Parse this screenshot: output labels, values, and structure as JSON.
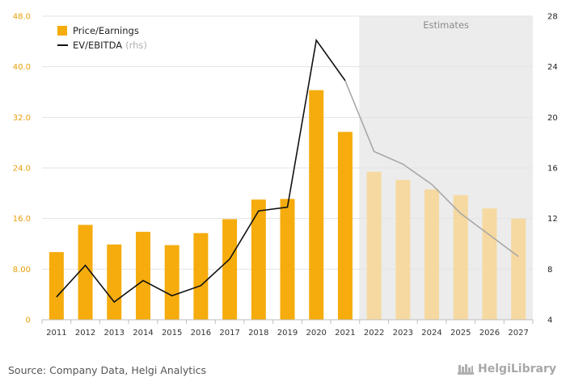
{
  "chart_data": {
    "type": "bar",
    "categories": [
      "2011",
      "2012",
      "2013",
      "2014",
      "2015",
      "2016",
      "2017",
      "2018",
      "2019",
      "2020",
      "2021",
      "2022",
      "2023",
      "2024",
      "2025",
      "2026",
      "2027"
    ],
    "series": [
      {
        "name": "Price/Earnings",
        "type": "bar",
        "axis": "left",
        "values": [
          10.7,
          15.0,
          11.9,
          13.9,
          11.8,
          13.7,
          15.9,
          19.0,
          19.1,
          36.3,
          29.7,
          23.4,
          22.1,
          20.6,
          19.7,
          17.6,
          16.0
        ]
      },
      {
        "name": "EV/EBITDA",
        "name_suffix": "(rhs)",
        "type": "line",
        "axis": "right",
        "values": [
          5.8,
          8.3,
          5.4,
          7.1,
          5.9,
          6.7,
          8.8,
          12.6,
          12.9,
          26.1,
          22.9,
          17.3,
          16.3,
          14.7,
          12.4,
          10.7,
          9.0
        ]
      }
    ],
    "estimates_from": "2022",
    "estimates_label": "Estimates",
    "y_left": {
      "min": 0,
      "max": 48,
      "ticks": [
        "0",
        "8.00",
        "16.0",
        "24.0",
        "32.0",
        "40.0",
        "48.0"
      ],
      "values": [
        0,
        8,
        16,
        24,
        32,
        40,
        48
      ]
    },
    "y_right": {
      "min": 4,
      "max": 28,
      "ticks": [
        "4",
        "8",
        "12",
        "16",
        "20",
        "24",
        "28"
      ],
      "values": [
        4,
        8,
        12,
        16,
        20,
        24,
        28
      ]
    },
    "grid": true,
    "legend_position": "top-left",
    "colors": {
      "bar_actual": "#f5ac0c",
      "bar_estimate": "#f6d9a0",
      "line_actual": "#111111",
      "line_estimate": "#a8a8a8",
      "left_axis_text": "#e6a00a",
      "estimates_bg": "#ececec",
      "grid": "#e3e3e3"
    }
  },
  "footer": {
    "source": "Source: Company Data, Helgi Analytics",
    "brand": "HelgiLibrary"
  }
}
